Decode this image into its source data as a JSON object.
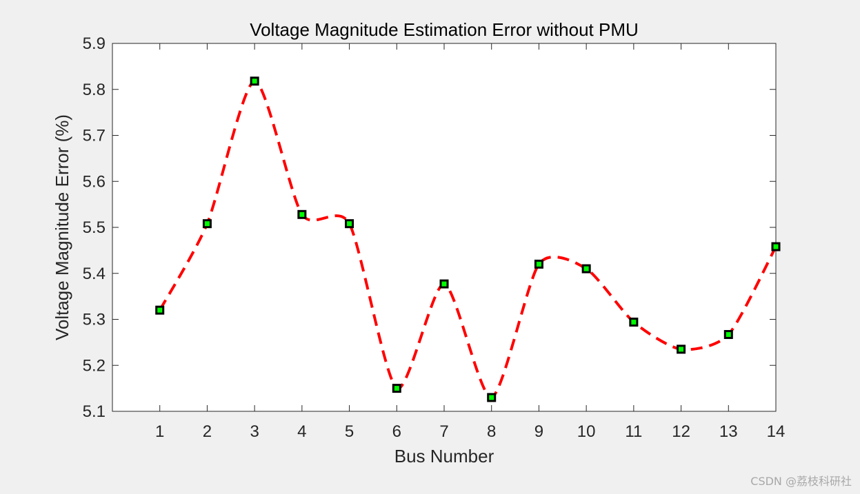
{
  "chart_data": {
    "type": "line",
    "title": "Voltage Magnitude Estimation Error without PMU",
    "xlabel": "Bus Number",
    "ylabel": "Voltage Magnitude Error (%)",
    "xlim": [
      0,
      14
    ],
    "ylim": [
      5.1,
      5.9
    ],
    "xticks": [
      1,
      2,
      3,
      4,
      5,
      6,
      7,
      8,
      9,
      10,
      11,
      12,
      13,
      14
    ],
    "yticks": [
      5.1,
      5.2,
      5.3,
      5.4,
      5.5,
      5.6,
      5.7,
      5.8,
      5.9
    ],
    "x": [
      1,
      2,
      3,
      4,
      5,
      6,
      7,
      8,
      9,
      10,
      11,
      12,
      13,
      14
    ],
    "series": [
      {
        "values": [
          5.32,
          5.508,
          5.818,
          5.528,
          5.508,
          5.15,
          5.377,
          5.13,
          5.42,
          5.41,
          5.294,
          5.235,
          5.267,
          5.458
        ],
        "line_style": "dashed",
        "line_color": "#ff0000",
        "marker": "square",
        "marker_edge_color": "#000000",
        "marker_face_color": "#00ff00"
      }
    ],
    "grid": false,
    "box": true
  },
  "watermark": "CSDN @荔枝科研社"
}
